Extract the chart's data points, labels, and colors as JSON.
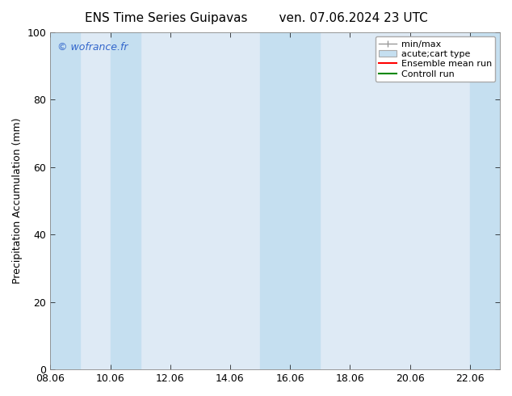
{
  "title_left": "ENS Time Series Guipavas",
  "title_right": "ven. 07.06.2024 23 UTC",
  "ylabel": "Precipitation Accumulation (mm)",
  "xlim": [
    8.06,
    23.06
  ],
  "ylim": [
    0,
    100
  ],
  "yticks": [
    0,
    20,
    40,
    60,
    80,
    100
  ],
  "xtick_labels": [
    "08.06",
    "10.06",
    "12.06",
    "14.06",
    "16.06",
    "18.06",
    "20.06",
    "22.06"
  ],
  "xtick_positions": [
    8.06,
    10.06,
    12.06,
    14.06,
    16.06,
    18.06,
    20.06,
    22.06
  ],
  "shaded_bands": [
    [
      8.06,
      9.06
    ],
    [
      10.06,
      11.06
    ],
    [
      15.06,
      17.06
    ],
    [
      22.06,
      23.06
    ]
  ],
  "plot_bg_color": "#deeaf5",
  "shade_color": "#c5dff0",
  "watermark_text": "© wofrance.fr",
  "watermark_color": "#3366cc",
  "legend_entries": [
    {
      "label": "min/max",
      "color": "#999999",
      "style": "errorbar"
    },
    {
      "label": "acute;cart type",
      "color": "#c5dff0",
      "edge_color": "#aaaaaa",
      "style": "box"
    },
    {
      "label": "Ensemble mean run",
      "color": "#ff0000",
      "style": "line"
    },
    {
      "label": "Controll run",
      "color": "#008800",
      "style": "line"
    }
  ],
  "bg_color": "#ffffff",
  "title_fontsize": 11,
  "label_fontsize": 9,
  "tick_fontsize": 9,
  "legend_fontsize": 8
}
